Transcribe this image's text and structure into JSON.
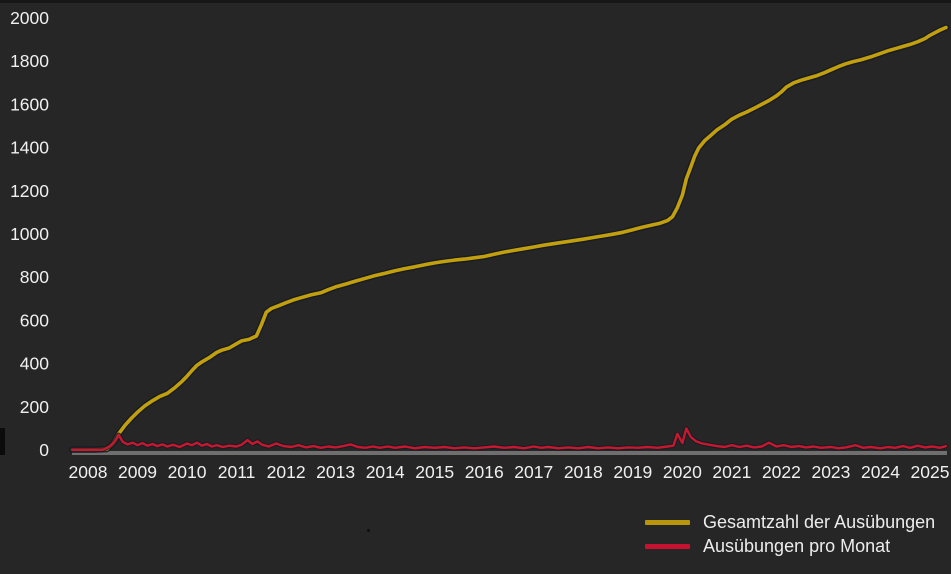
{
  "page": {
    "background": "#262626"
  },
  "chart_data": {
    "type": "line",
    "title": "",
    "xlabel": "",
    "ylabel": "",
    "grid": "off",
    "y_axis": {
      "range": [
        0,
        2000
      ],
      "tick_labels": [
        "0",
        "200",
        "400",
        "600",
        "800",
        "1000",
        "1200",
        "1400",
        "1600",
        "1800",
        "2000"
      ]
    },
    "x_axis": {
      "tick_labels": [
        "2008",
        "2009",
        "2010",
        "2011",
        "2012",
        "2013",
        "2014",
        "2015",
        "2016",
        "2017",
        "2018",
        "2019",
        "2020",
        "2021",
        "2022",
        "2023",
        "2024",
        "2025"
      ]
    },
    "colors": {
      "total_line": "#c2a00d",
      "monthly_line": "#c6182e",
      "baseline_bar": "#6f6f6f",
      "tick_text": "#f0f0f0",
      "line_shadow": "#171b24"
    },
    "legend": {
      "position": "bottom-right",
      "entries": [
        {
          "label": "Gesamtzahl der Ausübungen",
          "color": "#b8960b"
        },
        {
          "label": "Ausübungen pro Monat",
          "color": "#c41230"
        }
      ]
    },
    "series": [
      {
        "name": "Gesamtzahl der Ausübungen",
        "color": "#c2a00d",
        "points": [
          [
            2007.68,
            2
          ],
          [
            2008.1,
            2
          ],
          [
            2008.38,
            4
          ],
          [
            2008.5,
            28
          ],
          [
            2008.62,
            75
          ],
          [
            2008.75,
            115
          ],
          [
            2008.88,
            148
          ],
          [
            2009.0,
            175
          ],
          [
            2009.15,
            205
          ],
          [
            2009.3,
            228
          ],
          [
            2009.45,
            248
          ],
          [
            2009.6,
            262
          ],
          [
            2009.75,
            288
          ],
          [
            2009.9,
            318
          ],
          [
            2010.0,
            342
          ],
          [
            2010.1,
            368
          ],
          [
            2010.2,
            392
          ],
          [
            2010.3,
            408
          ],
          [
            2010.45,
            428
          ],
          [
            2010.6,
            452
          ],
          [
            2010.7,
            462
          ],
          [
            2010.85,
            472
          ],
          [
            2011.0,
            492
          ],
          [
            2011.1,
            505
          ],
          [
            2011.25,
            512
          ],
          [
            2011.4,
            528
          ],
          [
            2011.5,
            580
          ],
          [
            2011.6,
            638
          ],
          [
            2011.7,
            655
          ],
          [
            2011.85,
            668
          ],
          [
            2012.0,
            682
          ],
          [
            2012.15,
            695
          ],
          [
            2012.3,
            705
          ],
          [
            2012.5,
            718
          ],
          [
            2012.7,
            728
          ],
          [
            2012.85,
            742
          ],
          [
            2013.0,
            755
          ],
          [
            2013.2,
            768
          ],
          [
            2013.4,
            782
          ],
          [
            2013.6,
            795
          ],
          [
            2013.8,
            808
          ],
          [
            2014.0,
            818
          ],
          [
            2014.2,
            830
          ],
          [
            2014.4,
            840
          ],
          [
            2014.6,
            848
          ],
          [
            2014.8,
            858
          ],
          [
            2015.0,
            866
          ],
          [
            2015.2,
            873
          ],
          [
            2015.4,
            879
          ],
          [
            2015.6,
            884
          ],
          [
            2015.8,
            890
          ],
          [
            2016.0,
            896
          ],
          [
            2016.2,
            906
          ],
          [
            2016.4,
            916
          ],
          [
            2016.6,
            924
          ],
          [
            2016.8,
            932
          ],
          [
            2017.0,
            940
          ],
          [
            2017.2,
            948
          ],
          [
            2017.4,
            955
          ],
          [
            2017.6,
            962
          ],
          [
            2017.8,
            969
          ],
          [
            2018.0,
            976
          ],
          [
            2018.2,
            984
          ],
          [
            2018.4,
            991
          ],
          [
            2018.6,
            999
          ],
          [
            2018.8,
            1008
          ],
          [
            2019.0,
            1020
          ],
          [
            2019.2,
            1032
          ],
          [
            2019.4,
            1042
          ],
          [
            2019.55,
            1050
          ],
          [
            2019.7,
            1062
          ],
          [
            2019.8,
            1080
          ],
          [
            2019.9,
            1122
          ],
          [
            2020.0,
            1180
          ],
          [
            2020.08,
            1255
          ],
          [
            2020.17,
            1310
          ],
          [
            2020.25,
            1360
          ],
          [
            2020.33,
            1398
          ],
          [
            2020.45,
            1432
          ],
          [
            2020.58,
            1458
          ],
          [
            2020.7,
            1482
          ],
          [
            2020.85,
            1505
          ],
          [
            2021.0,
            1532
          ],
          [
            2021.15,
            1550
          ],
          [
            2021.3,
            1565
          ],
          [
            2021.45,
            1582
          ],
          [
            2021.6,
            1600
          ],
          [
            2021.75,
            1618
          ],
          [
            2021.9,
            1640
          ],
          [
            2022.0,
            1658
          ],
          [
            2022.1,
            1680
          ],
          [
            2022.25,
            1700
          ],
          [
            2022.4,
            1712
          ],
          [
            2022.55,
            1722
          ],
          [
            2022.7,
            1732
          ],
          [
            2022.85,
            1745
          ],
          [
            2023.0,
            1760
          ],
          [
            2023.15,
            1775
          ],
          [
            2023.3,
            1788
          ],
          [
            2023.45,
            1798
          ],
          [
            2023.6,
            1806
          ],
          [
            2023.8,
            1820
          ],
          [
            2024.0,
            1836
          ],
          [
            2024.15,
            1848
          ],
          [
            2024.3,
            1858
          ],
          [
            2024.45,
            1868
          ],
          [
            2024.6,
            1878
          ],
          [
            2024.75,
            1890
          ],
          [
            2024.9,
            1905
          ],
          [
            2025.0,
            1920
          ],
          [
            2025.1,
            1932
          ],
          [
            2025.2,
            1944
          ],
          [
            2025.32,
            1956
          ]
        ]
      },
      {
        "name": "Ausübungen pro Monat",
        "color": "#c6182e",
        "points": [
          [
            2007.68,
            1
          ],
          [
            2008.3,
            1
          ],
          [
            2008.45,
            18
          ],
          [
            2008.55,
            42
          ],
          [
            2008.62,
            70
          ],
          [
            2008.7,
            38
          ],
          [
            2008.8,
            26
          ],
          [
            2008.9,
            34
          ],
          [
            2009.0,
            22
          ],
          [
            2009.1,
            32
          ],
          [
            2009.2,
            20
          ],
          [
            2009.3,
            28
          ],
          [
            2009.4,
            18
          ],
          [
            2009.5,
            26
          ],
          [
            2009.6,
            16
          ],
          [
            2009.72,
            24
          ],
          [
            2009.85,
            14
          ],
          [
            2010.0,
            30
          ],
          [
            2010.1,
            22
          ],
          [
            2010.2,
            34
          ],
          [
            2010.3,
            20
          ],
          [
            2010.4,
            28
          ],
          [
            2010.5,
            16
          ],
          [
            2010.6,
            22
          ],
          [
            2010.72,
            14
          ],
          [
            2010.85,
            20
          ],
          [
            2011.0,
            16
          ],
          [
            2011.1,
            24
          ],
          [
            2011.22,
            46
          ],
          [
            2011.32,
            28
          ],
          [
            2011.42,
            40
          ],
          [
            2011.52,
            24
          ],
          [
            2011.65,
            16
          ],
          [
            2011.8,
            30
          ],
          [
            2011.95,
            18
          ],
          [
            2012.1,
            14
          ],
          [
            2012.25,
            22
          ],
          [
            2012.4,
            12
          ],
          [
            2012.55,
            18
          ],
          [
            2012.7,
            10
          ],
          [
            2012.85,
            16
          ],
          [
            2013.0,
            12
          ],
          [
            2013.15,
            18
          ],
          [
            2013.3,
            26
          ],
          [
            2013.45,
            14
          ],
          [
            2013.6,
            10
          ],
          [
            2013.75,
            16
          ],
          [
            2013.9,
            10
          ],
          [
            2014.05,
            16
          ],
          [
            2014.2,
            10
          ],
          [
            2014.4,
            16
          ],
          [
            2014.6,
            8
          ],
          [
            2014.8,
            14
          ],
          [
            2015.0,
            10
          ],
          [
            2015.2,
            14
          ],
          [
            2015.4,
            8
          ],
          [
            2015.6,
            12
          ],
          [
            2015.8,
            8
          ],
          [
            2016.0,
            12
          ],
          [
            2016.2,
            16
          ],
          [
            2016.4,
            10
          ],
          [
            2016.6,
            14
          ],
          [
            2016.8,
            8
          ],
          [
            2017.0,
            16
          ],
          [
            2017.15,
            10
          ],
          [
            2017.3,
            14
          ],
          [
            2017.5,
            8
          ],
          [
            2017.7,
            12
          ],
          [
            2017.9,
            8
          ],
          [
            2018.1,
            14
          ],
          [
            2018.3,
            8
          ],
          [
            2018.5,
            12
          ],
          [
            2018.7,
            8
          ],
          [
            2018.9,
            12
          ],
          [
            2019.1,
            10
          ],
          [
            2019.3,
            14
          ],
          [
            2019.5,
            10
          ],
          [
            2019.7,
            16
          ],
          [
            2019.82,
            20
          ],
          [
            2019.9,
            75
          ],
          [
            2020.0,
            32
          ],
          [
            2020.08,
            100
          ],
          [
            2020.17,
            60
          ],
          [
            2020.28,
            40
          ],
          [
            2020.4,
            30
          ],
          [
            2020.55,
            24
          ],
          [
            2020.7,
            18
          ],
          [
            2020.85,
            14
          ],
          [
            2021.0,
            22
          ],
          [
            2021.15,
            14
          ],
          [
            2021.3,
            20
          ],
          [
            2021.45,
            12
          ],
          [
            2021.6,
            16
          ],
          [
            2021.75,
            34
          ],
          [
            2021.9,
            16
          ],
          [
            2022.05,
            22
          ],
          [
            2022.2,
            14
          ],
          [
            2022.35,
            18
          ],
          [
            2022.5,
            12
          ],
          [
            2022.65,
            16
          ],
          [
            2022.8,
            10
          ],
          [
            2023.0,
            14
          ],
          [
            2023.15,
            8
          ],
          [
            2023.3,
            12
          ],
          [
            2023.5,
            22
          ],
          [
            2023.65,
            10
          ],
          [
            2023.8,
            14
          ],
          [
            2024.0,
            8
          ],
          [
            2024.15,
            14
          ],
          [
            2024.3,
            10
          ],
          [
            2024.45,
            18
          ],
          [
            2024.6,
            10
          ],
          [
            2024.75,
            20
          ],
          [
            2024.9,
            12
          ],
          [
            2025.05,
            16
          ],
          [
            2025.2,
            10
          ],
          [
            2025.32,
            18
          ]
        ]
      }
    ]
  }
}
